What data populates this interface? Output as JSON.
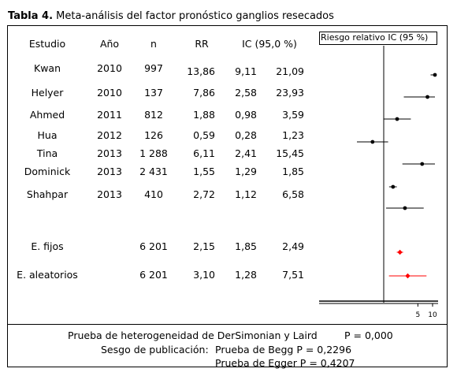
{
  "caption": {
    "label": "Tabla 4.",
    "title": "Meta-análisis del factor pronóstico ganglios resecados"
  },
  "headers": {
    "study": "Estudio",
    "year": "Año",
    "n": "n",
    "rr": "RR",
    "ci": "IC (95,0 %)"
  },
  "plot_header": "Riesgo relativo IC (95 %)",
  "rows": [
    {
      "study": "Kwan",
      "year": "2010",
      "n": "997",
      "rr": "13,86",
      "lo": "9,11",
      "hi": "21,09"
    },
    {
      "study": "Helyer",
      "year": "2010",
      "n": "137",
      "rr": "7,86",
      "lo": "2,58",
      "hi": "23,93"
    },
    {
      "study": "Ahmed",
      "year": "2011",
      "n": "812",
      "rr": "1,88",
      "lo": "0,98",
      "hi": "3,59"
    },
    {
      "study": "Hua",
      "year": "2012",
      "n": "126",
      "rr": "0,59",
      "lo": "0,28",
      "hi": "1,23"
    },
    {
      "study": "Tina",
      "year": "2013",
      "n": "1 288",
      "rr": "6,11",
      "lo": "2,41",
      "hi": "15,45"
    },
    {
      "study": "Dominick",
      "year": "2013",
      "n": "2 431",
      "rr": "1,55",
      "lo": "1,29",
      "hi": "1,85"
    },
    {
      "study": "Shahpar",
      "year": "2013",
      "n": "410",
      "rr": "2,72",
      "lo": "1,12",
      "hi": "6,58"
    }
  ],
  "summary": [
    {
      "study": "E. fijos",
      "n": "6 201",
      "rr": "2,15",
      "lo": "1,85",
      "hi": "2,49"
    },
    {
      "study": "E. aleatorios",
      "n": "6 201",
      "rr": "3,10",
      "lo": "1,28",
      "hi": "7,51"
    }
  ],
  "footer": {
    "heterogeneity_label": "Prueba de heterogeneidad de DerSimonian y Laird",
    "heterogeneity_p": "P = 0,000",
    "publication_bias_label": "Sesgo de publicación:",
    "begg": "Prueba de Begg  P = 0,2296",
    "egger": "Prueba de Egger  P = 0,4207"
  },
  "chart_data": {
    "type": "forest",
    "xlabel": "",
    "x_ticks": [
      "5",
      "10"
    ],
    "reference_line": 1,
    "colors": {
      "study": "#000000",
      "summary": "#ff0000"
    },
    "studies": [
      {
        "name": "Kwan",
        "rr": 13.86,
        "lo": 9.11,
        "hi": 21.09
      },
      {
        "name": "Helyer",
        "rr": 7.86,
        "lo": 2.58,
        "hi": 23.93
      },
      {
        "name": "Ahmed",
        "rr": 1.88,
        "lo": 0.98,
        "hi": 3.59
      },
      {
        "name": "Hua",
        "rr": 0.59,
        "lo": 0.28,
        "hi": 1.23
      },
      {
        "name": "Tina",
        "rr": 6.11,
        "lo": 2.41,
        "hi": 15.45
      },
      {
        "name": "Dominick",
        "rr": 1.55,
        "lo": 1.29,
        "hi": 1.85
      },
      {
        "name": "Shahpar",
        "rr": 2.72,
        "lo": 1.12,
        "hi": 6.58
      }
    ],
    "summaries": [
      {
        "name": "E. fijos",
        "rr": 2.15,
        "lo": 1.85,
        "hi": 2.49
      },
      {
        "name": "E. aleatorios",
        "rr": 3.1,
        "lo": 1.28,
        "hi": 7.51
      }
    ]
  }
}
